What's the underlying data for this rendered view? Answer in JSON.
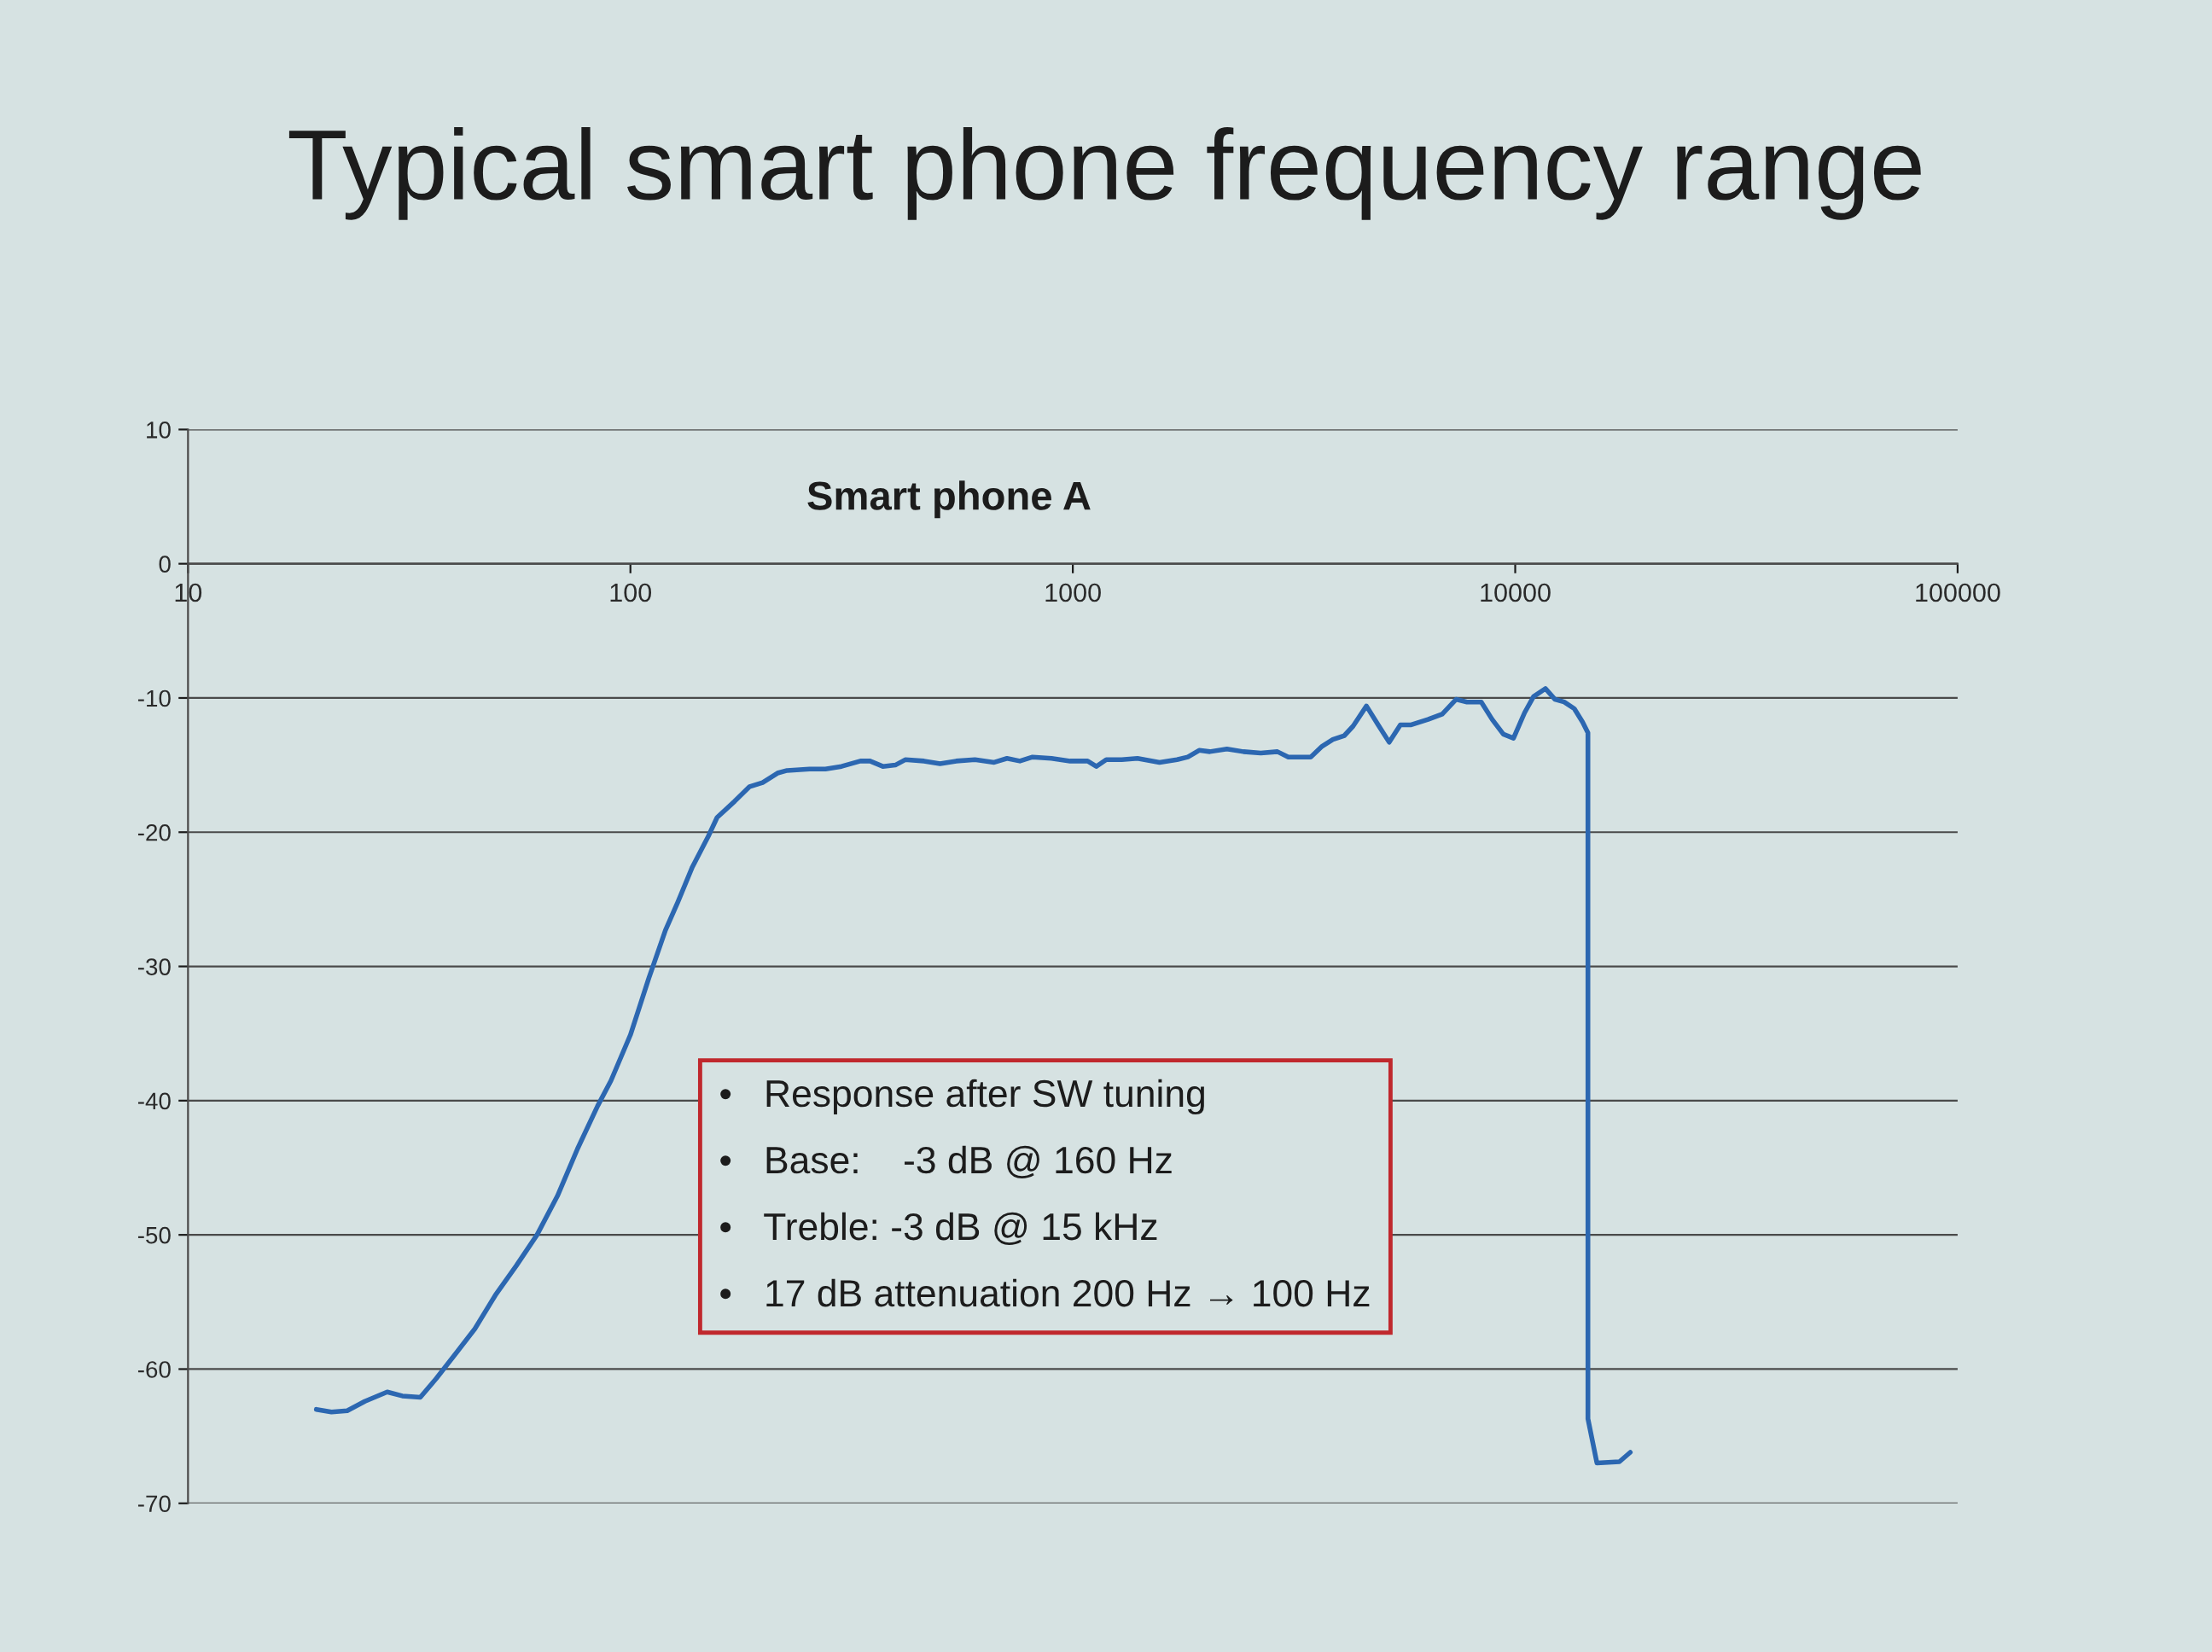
{
  "chart_data": {
    "type": "line",
    "title": "Typical smart phone frequency range",
    "subtitle": "Smart phone A",
    "x": [
      19.5,
      21.1,
      22.9,
      25.1,
      28.2,
      30.5,
      33.5,
      36.4,
      40.6,
      44.5,
      49.5,
      55.2,
      61.5,
      68.4,
      75.9,
      84.3,
      90.4,
      100,
      110,
      120,
      128,
      138,
      150,
      157,
      172,
      186,
      199,
      215,
      226,
      254,
      276,
      300,
      331,
      348,
      372,
      397,
      418,
      461,
      501,
      545,
      601,
      664,
      710,
      759,
      811,
      895,
      986,
      1080,
      1130,
      1190,
      1290,
      1400,
      1570,
      1720,
      1820,
      1930,
      2040,
      2230,
      2430,
      2660,
      2900,
      3070,
      3450,
      3660,
      3870,
      4110,
      4300,
      4610,
      4900,
      5190,
      5500,
      5820,
      6350,
      6840,
      7350,
      7780,
      8380,
      8870,
      9400,
      9910,
      10500,
      11000,
      11700,
      12300,
      12900,
      13600,
      14200,
      14600,
      14600,
      15300,
      17200,
      18200
    ],
    "series": [
      {
        "color": "#2c67b1",
        "values": [
          -63.0,
          -63.2,
          -63.1,
          -62.4,
          -61.7,
          -62.0,
          -62.1,
          -60.7,
          -58.7,
          -57.0,
          -54.5,
          -52.3,
          -50.0,
          -47.1,
          -43.6,
          -40.4,
          -38.5,
          -35.1,
          -30.9,
          -27.3,
          -25.2,
          -22.6,
          -20.3,
          -18.9,
          -17.7,
          -16.6,
          -16.3,
          -15.6,
          -15.4,
          -15.3,
          -15.3,
          -15.1,
          -14.7,
          -14.7,
          -15.1,
          -15.0,
          -14.6,
          -14.7,
          -14.9,
          -14.7,
          -14.6,
          -14.8,
          -14.5,
          -14.7,
          -14.4,
          -14.5,
          -14.7,
          -14.7,
          -15.1,
          -14.6,
          -14.6,
          -14.5,
          -14.8,
          -14.6,
          -14.4,
          -13.9,
          -14.0,
          -13.8,
          -14.0,
          -14.1,
          -14.0,
          -14.4,
          -14.4,
          -13.6,
          -13.1,
          -12.8,
          -12.1,
          -10.6,
          -12.0,
          -13.3,
          -12.0,
          -12.0,
          -11.6,
          -11.2,
          -10.1,
          -10.3,
          -10.3,
          -11.6,
          -12.7,
          -13.0,
          -11.1,
          -9.9,
          -9.3,
          -10.1,
          -10.3,
          -10.8,
          -11.8,
          -12.6,
          -63.7,
          -67.0,
          -66.9,
          -66.2
        ]
      }
    ],
    "log": "x",
    "xlim": [
      10,
      100000
    ],
    "xticks": [
      10,
      100,
      1000,
      10000,
      100000
    ],
    "ylim": [
      -70,
      10
    ],
    "yticks": [
      -70,
      -60,
      -50,
      -40,
      -30,
      -20,
      -10,
      0,
      10
    ],
    "grid": "y",
    "annotations": [
      "•   Response after SW tuning",
      "•   Base:    -3 dB @ 160 Hz",
      "•   Treble: -3 dB @ 15 kHz",
      "•   17 dB attenuation 200 Hz → 100 Hz"
    ]
  }
}
